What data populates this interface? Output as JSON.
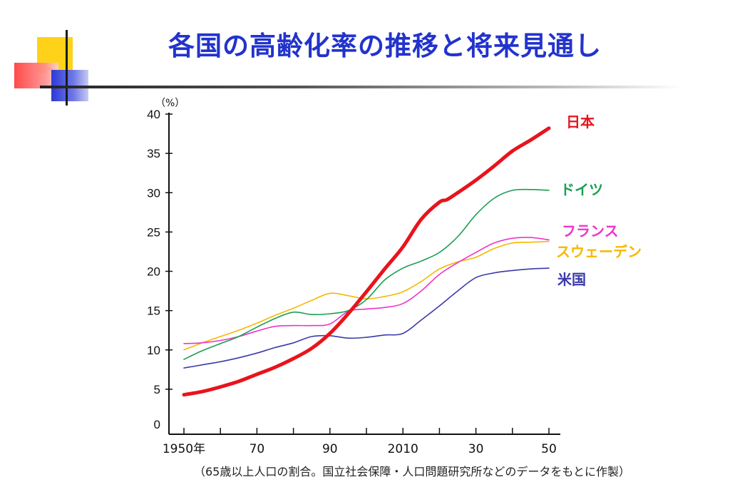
{
  "title": "各国の高齢化率の推移と将来見通し",
  "footnote": "（65歳以上人口の割合。国立社会保障・人口問題研究所などのデータをもとに作製）",
  "chart_data": {
    "type": "line",
    "y_unit_label": "（%）",
    "ylim": [
      0,
      40
    ],
    "xlim": [
      1950,
      2050
    ],
    "y_ticks": [
      {
        "value": 0,
        "label": "0"
      },
      {
        "value": 5,
        "label": "5"
      },
      {
        "value": 10,
        "label": "10"
      },
      {
        "value": 15,
        "label": "15"
      },
      {
        "value": 20,
        "label": "20"
      },
      {
        "value": 25,
        "label": "25"
      },
      {
        "value": 30,
        "label": "30"
      },
      {
        "value": 35,
        "label": "35"
      },
      {
        "value": 40,
        "label": "40"
      }
    ],
    "x_ticks": [
      {
        "value": 1950,
        "label": "1950年"
      },
      {
        "value": 1960,
        "label": ""
      },
      {
        "value": 1970,
        "label": "70"
      },
      {
        "value": 1980,
        "label": ""
      },
      {
        "value": 1990,
        "label": "90"
      },
      {
        "value": 2000,
        "label": ""
      },
      {
        "value": 2010,
        "label": "2010"
      },
      {
        "value": 2020,
        "label": ""
      },
      {
        "value": 2030,
        "label": "30"
      },
      {
        "value": 2040,
        "label": ""
      },
      {
        "value": 2050,
        "label": "50"
      }
    ],
    "grid": false,
    "series": [
      {
        "name": "日本",
        "color": "#e8141c",
        "x": [
          1950,
          1955,
          1960,
          1965,
          1970,
          1975,
          1980,
          1985,
          1990,
          1995,
          2000,
          2005,
          2010,
          2015,
          2020,
          2022,
          2025,
          2030,
          2035,
          2040,
          2045,
          2050
        ],
        "y": [
          4.3,
          4.7,
          5.3,
          6.0,
          6.9,
          7.8,
          8.9,
          10.2,
          12.1,
          14.6,
          17.4,
          20.3,
          23.1,
          26.6,
          28.8,
          29.1,
          30.0,
          31.6,
          33.4,
          35.3,
          36.7,
          38.2
        ]
      },
      {
        "name": "ドイツ",
        "color": "#1a9e52",
        "x": [
          1950,
          1955,
          1960,
          1965,
          1970,
          1975,
          1980,
          1985,
          1990,
          1995,
          2000,
          2005,
          2010,
          2015,
          2020,
          2025,
          2030,
          2035,
          2040,
          2045,
          2050
        ],
        "y": [
          8.8,
          9.9,
          10.8,
          11.7,
          12.9,
          14.0,
          14.8,
          14.5,
          14.6,
          15.0,
          16.4,
          18.9,
          20.4,
          21.3,
          22.4,
          24.4,
          27.2,
          29.3,
          30.3,
          30.4,
          30.3
        ]
      },
      {
        "name": "フランス",
        "color": "#ee33cc",
        "x": [
          1950,
          1955,
          1960,
          1965,
          1970,
          1975,
          1980,
          1985,
          1990,
          1995,
          2000,
          2005,
          2010,
          2015,
          2020,
          2025,
          2030,
          2035,
          2040,
          2045,
          2050
        ],
        "y": [
          10.8,
          10.9,
          11.2,
          11.7,
          12.4,
          13.0,
          13.1,
          13.1,
          13.3,
          14.9,
          15.2,
          15.4,
          15.9,
          17.5,
          19.6,
          21.1,
          22.4,
          23.6,
          24.2,
          24.3,
          24.0
        ]
      },
      {
        "name": "スウェーデン",
        "color": "#f5b800",
        "x": [
          1950,
          1955,
          1960,
          1965,
          1970,
          1975,
          1980,
          1985,
          1990,
          1995,
          2000,
          2005,
          2010,
          2015,
          2020,
          2025,
          2030,
          2035,
          2040,
          2045,
          2050
        ],
        "y": [
          10.0,
          10.9,
          11.7,
          12.5,
          13.4,
          14.4,
          15.3,
          16.3,
          17.2,
          16.9,
          16.5,
          16.8,
          17.4,
          18.7,
          20.3,
          21.2,
          21.8,
          22.9,
          23.6,
          23.7,
          23.8
        ]
      },
      {
        "name": "米国",
        "color": "#3a3aaa",
        "x": [
          1950,
          1955,
          1960,
          1965,
          1970,
          1975,
          1980,
          1985,
          1990,
          1995,
          2000,
          2005,
          2010,
          2015,
          2020,
          2025,
          2030,
          2035,
          2040,
          2045,
          2050
        ],
        "y": [
          7.7,
          8.1,
          8.5,
          9.0,
          9.6,
          10.3,
          10.9,
          11.7,
          11.8,
          11.5,
          11.6,
          11.9,
          12.1,
          13.8,
          15.6,
          17.5,
          19.2,
          19.8,
          20.1,
          20.3,
          20.4
        ]
      }
    ]
  }
}
